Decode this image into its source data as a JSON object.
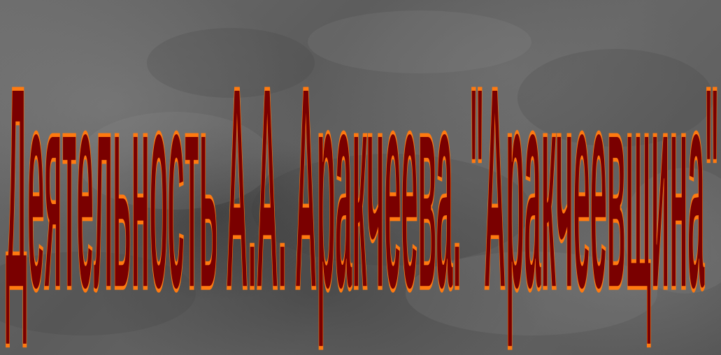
{
  "slide": {
    "title": "Деятельность А.А. Аракчеева. \"Аракчеевщина\"",
    "colors": {
      "text_fill": "#7a0000",
      "text_outline": "#ff7a10",
      "background": "#636363"
    }
  }
}
